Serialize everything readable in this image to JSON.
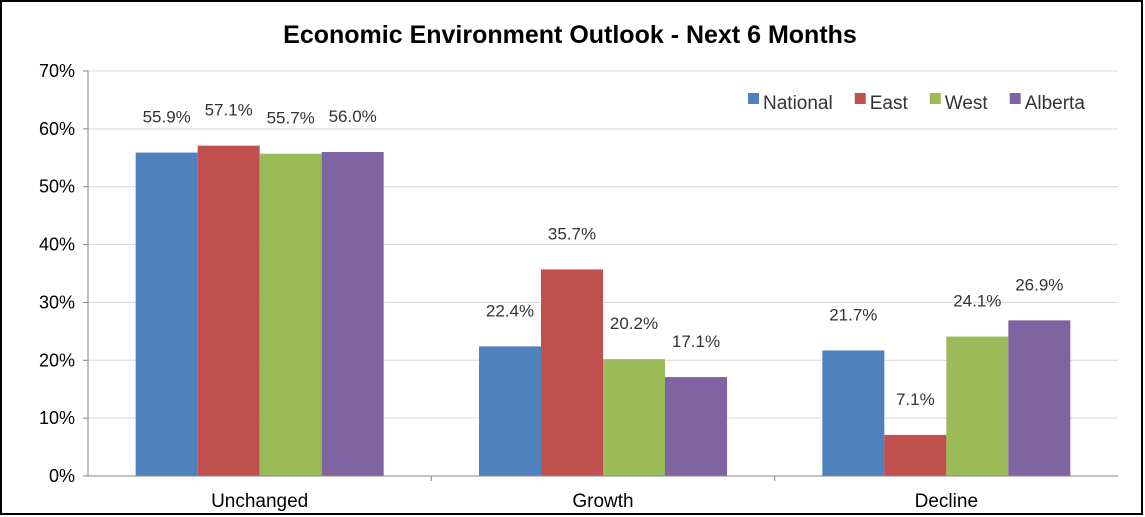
{
  "chart_data": {
    "type": "bar",
    "title": "Economic Environment Outlook - Next 6 Months",
    "xlabel": "",
    "ylabel": "",
    "categories": [
      "Unchanged",
      "Growth",
      "Decline"
    ],
    "ylim": [
      0,
      70
    ],
    "yticks": [
      "0%",
      "10%",
      "20%",
      "30%",
      "40%",
      "50%",
      "60%",
      "70%"
    ],
    "grid": true,
    "legend_position": "top-right",
    "series": [
      {
        "name": "National",
        "color": "#4F81BD",
        "values": [
          55.9,
          22.4,
          21.7
        ],
        "labels": [
          "55.9%",
          "22.4%",
          "21.7%"
        ]
      },
      {
        "name": "East",
        "color": "#C0504D",
        "values": [
          57.1,
          35.7,
          7.1
        ],
        "labels": [
          "57.1%",
          "35.7%",
          "7.1%"
        ]
      },
      {
        "name": "West",
        "color": "#9BBB59",
        "values": [
          55.7,
          20.2,
          24.1
        ],
        "labels": [
          "55.7%",
          "20.2%",
          "24.1%"
        ]
      },
      {
        "name": "Alberta",
        "color": "#8064A2",
        "values": [
          56.0,
          17.1,
          26.9
        ],
        "labels": [
          "56.0%",
          "17.1%",
          "26.9%"
        ]
      }
    ]
  }
}
